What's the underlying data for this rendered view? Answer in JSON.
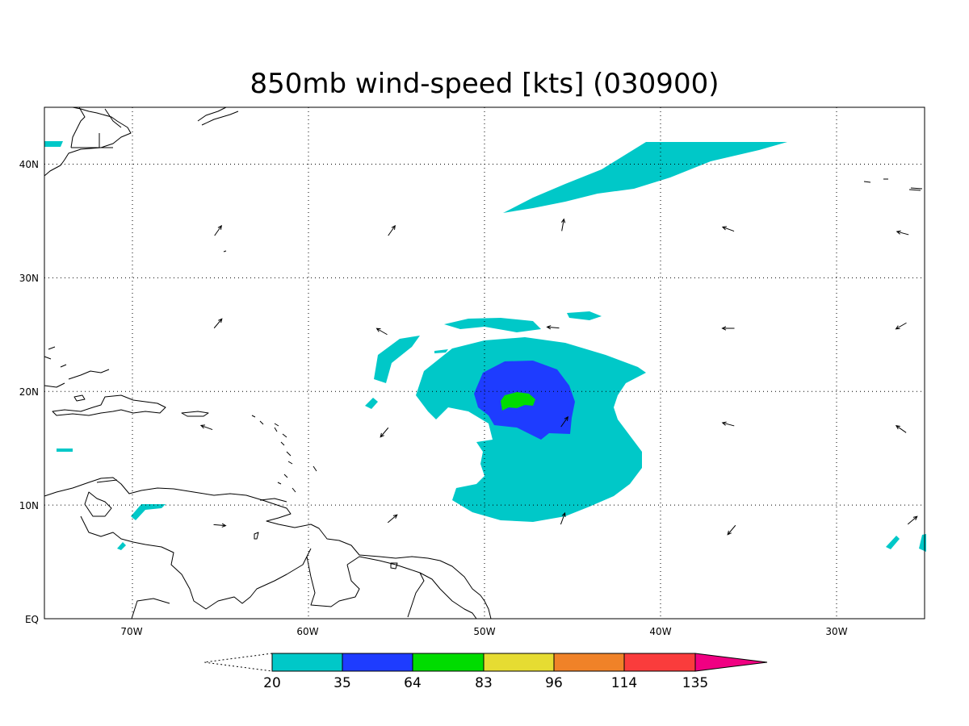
{
  "title": "850mb wind-speed [kts] (030900)",
  "lon_labels": [
    "70W",
    "60W",
    "50W",
    "40W",
    "30W"
  ],
  "lat_labels": [
    "40N",
    "30N",
    "20N",
    "10N",
    "EQ"
  ],
  "colorbar": {
    "levels": [
      "20",
      "35",
      "64",
      "83",
      "96",
      "114",
      "135"
    ],
    "colors": [
      "#00c8c8",
      "#1e3cff",
      "#00dc00",
      "#e6dc32",
      "#f08228",
      "#fa3c3c",
      "#f00082"
    ]
  },
  "chart_data": {
    "type": "heatmap",
    "variable": "850mb wind-speed",
    "units": "kts",
    "time": "030900",
    "domain": {
      "lon": [
        -75,
        -25
      ],
      "lat": [
        0,
        45
      ]
    },
    "contour_levels": [
      20,
      35,
      64,
      83,
      96,
      114,
      135
    ],
    "grid_lines": {
      "lon": [
        -70,
        -60,
        -50,
        -40,
        -30
      ],
      "lat": [
        10,
        20,
        30,
        40
      ]
    },
    "features": [
      {
        "type": "cyclone",
        "center_lon": -48.5,
        "center_lat": 19.5,
        "max_category": "64-83"
      }
    ]
  }
}
